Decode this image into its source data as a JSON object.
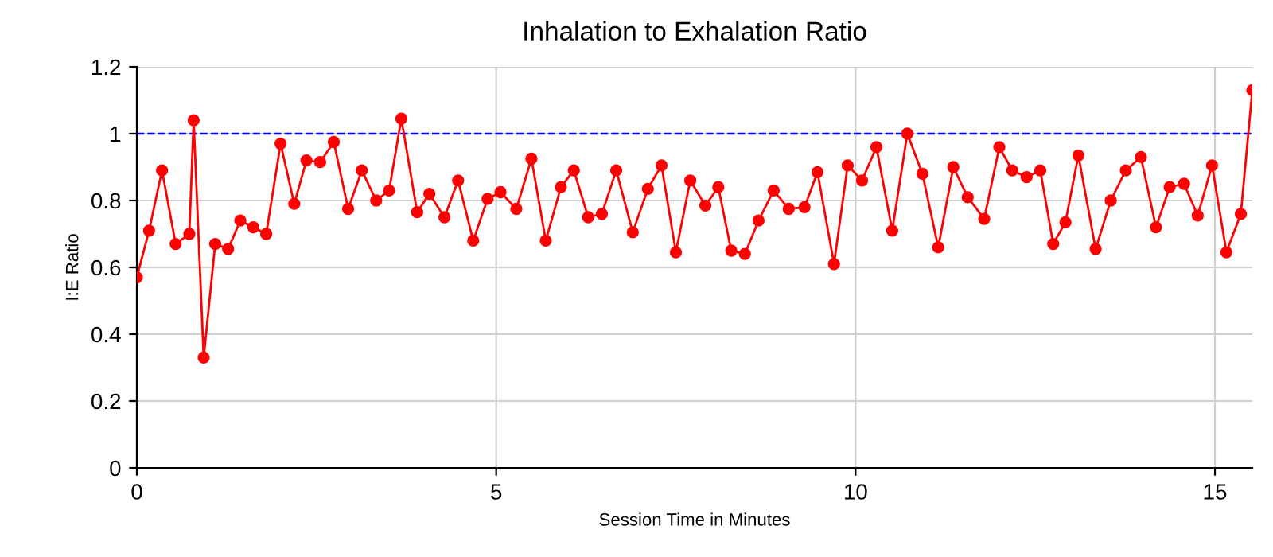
{
  "chart_data": {
    "type": "line",
    "title": "Inhalation to Exhalation Ratio",
    "xlabel": "Session Time in Minutes",
    "ylabel": "I:E Ratio",
    "x": [
      0,
      0.17,
      0.35,
      0.54,
      0.73,
      0.79,
      0.93,
      1.09,
      1.27,
      1.44,
      1.62,
      1.8,
      2.0,
      2.19,
      2.36,
      2.55,
      2.74,
      2.94,
      3.13,
      3.33,
      3.51,
      3.68,
      3.9,
      4.07,
      4.28,
      4.47,
      4.68,
      4.88,
      5.06,
      5.28,
      5.49,
      5.69,
      5.9,
      6.08,
      6.28,
      6.47,
      6.67,
      6.9,
      7.11,
      7.3,
      7.5,
      7.7,
      7.91,
      8.09,
      8.27,
      8.46,
      8.65,
      8.86,
      9.07,
      9.29,
      9.47,
      9.7,
      9.89,
      10.09,
      10.29,
      10.51,
      10.72,
      10.93,
      11.15,
      11.36,
      11.56,
      11.79,
      12.0,
      12.18,
      12.38,
      12.57,
      12.75,
      12.92,
      13.1,
      13.34,
      13.55,
      13.76,
      13.97,
      14.18,
      14.37,
      14.57,
      14.76,
      14.96,
      15.16,
      15.36,
      15.52
    ],
    "series": [
      {
        "color": "#ff0000",
        "values": [
          0.57,
          0.71,
          0.89,
          0.67,
          0.7,
          1.04,
          0.33,
          0.67,
          0.655,
          0.74,
          0.72,
          0.7,
          0.97,
          0.79,
          0.92,
          0.915,
          0.975,
          0.775,
          0.89,
          0.8,
          0.83,
          1.045,
          0.765,
          0.82,
          0.75,
          0.86,
          0.68,
          0.805,
          0.825,
          0.775,
          0.925,
          0.68,
          0.84,
          0.89,
          0.75,
          0.76,
          0.89,
          0.705,
          0.835,
          0.905,
          0.645,
          0.86,
          0.785,
          0.84,
          0.65,
          0.64,
          0.74,
          0.83,
          0.775,
          0.78,
          0.885,
          0.61,
          0.905,
          0.86,
          0.96,
          0.71,
          1.0,
          0.88,
          0.66,
          0.9,
          0.81,
          0.745,
          0.96,
          0.89,
          0.87,
          0.89,
          0.67,
          0.735,
          0.935,
          0.655,
          0.8,
          0.89,
          0.93,
          0.72,
          0.84,
          0.85,
          0.755,
          0.905,
          0.645,
          0.76,
          1.13
        ]
      }
    ],
    "xlim": [
      0,
      15.52
    ],
    "xticks": [
      0,
      5,
      10,
      15
    ],
    "ylim": [
      0,
      1.2
    ],
    "yticks": [
      0,
      0.2,
      0.4,
      0.6,
      0.8,
      1,
      1.2
    ],
    "ref_lines": [
      {
        "axis": "y",
        "value": 1,
        "color": "#0000ff",
        "line_style": "dashed"
      }
    ],
    "grid": true,
    "marker": "circle",
    "line_style": "solid"
  }
}
